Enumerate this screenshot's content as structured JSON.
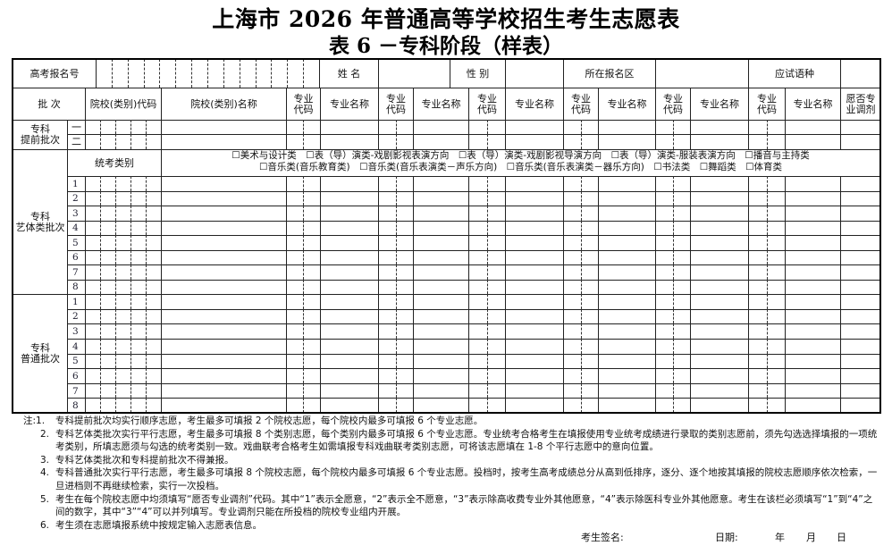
{
  "title": "上海市 2026 年普通高等学校招生考生志愿表",
  "subtitle": "表 6  －专科阶段（样表）",
  "header": {
    "exam_number_label": "高考报名号",
    "name_label": "姓  名",
    "gender_label": "性  别",
    "district_label": "所在报名区",
    "language_label": "应试语种"
  },
  "columns": {
    "batch": "批  次",
    "school_code": "院校(类别)代码",
    "school_name": "院校(类别)名称",
    "major_code": "专业\n代码",
    "major_name": "专业名称",
    "adjust": "愿否专\n业调剂"
  },
  "batches": {
    "early": "专科\n提前批次",
    "early_rows": [
      "一",
      "二"
    ],
    "art": "专科\n艺体类批次",
    "general": "专科\n普通批次",
    "row_numbers": [
      "1",
      "2",
      "3",
      "4",
      "5",
      "6",
      "7",
      "8"
    ]
  },
  "exam_category": {
    "label": "统考类别",
    "line1": "☐美术与设计类　☐表（导）演类-戏剧影视表演方向　☐表（导）演类-戏剧影视导演方向　☐表（导）演类-服装表演方向　☐播音与主持类",
    "line2": "☐音乐类(音乐教育类)　☐音乐类(音乐表演类－声乐方向)　☐音乐类(音乐表演类－器乐方向)　☐书法类　☐舞蹈类　☐体育类"
  },
  "notes": {
    "prefix": "注:",
    "items": [
      {
        "label": "1.",
        "text": "专科提前批次均实行顺序志愿，考生最多可填报 2 个院校志愿，每个院校内最多可填报 6 个专业志愿。"
      },
      {
        "label": "2.",
        "text": "专科艺体类批次实行平行志愿，考生最多可填报 8 个类别志愿，每个类别内最多可填报 6 个专业志愿。专业统考合格考生在填报使用专业统考成绩进行录取的类别志愿前，须先勾选选择填报的一项统考类别，所填志愿须与勾选的统考类别一致。戏曲联考合格考生如需填报专科戏曲联考类别志愿，可将该志愿填在 1-8 个平行志愿中的意向位置。"
      },
      {
        "label": "3.",
        "text": "专科艺体类批次和专科提前批次不得兼报。"
      },
      {
        "label": "4.",
        "text": "专科普通批次实行平行志愿，考生最多可填报 8 个院校志愿，每个院校内最多可填报 6 个专业志愿。投档时，按考生高考成绩总分从高到低排序，逐分、逐个地按其填报的院校志愿顺序依次检索，一旦进档则不再继续检索，实行一次投档。"
      },
      {
        "label": "5.",
        "text": "考生在每个院校志愿中均须填写“愿否专业调剂”代码。其中“1”表示全愿意，“2”表示全不愿意，“3”表示除高收费专业外其他愿意，“4”表示除医科专业外其他愿意。考生在该栏必须填写“1”到“4”之间的数字，其中“3”“4”可以并列填写。专业调剂只能在所投档的院校专业组内开展。"
      },
      {
        "label": "6.",
        "text": "考生须在志愿填报系统中按规定输入志愿表信息。"
      }
    ]
  },
  "signature": {
    "signature_label": "考生签名:",
    "date_label": "日期:",
    "year": "年",
    "month": "月",
    "day": "日"
  }
}
